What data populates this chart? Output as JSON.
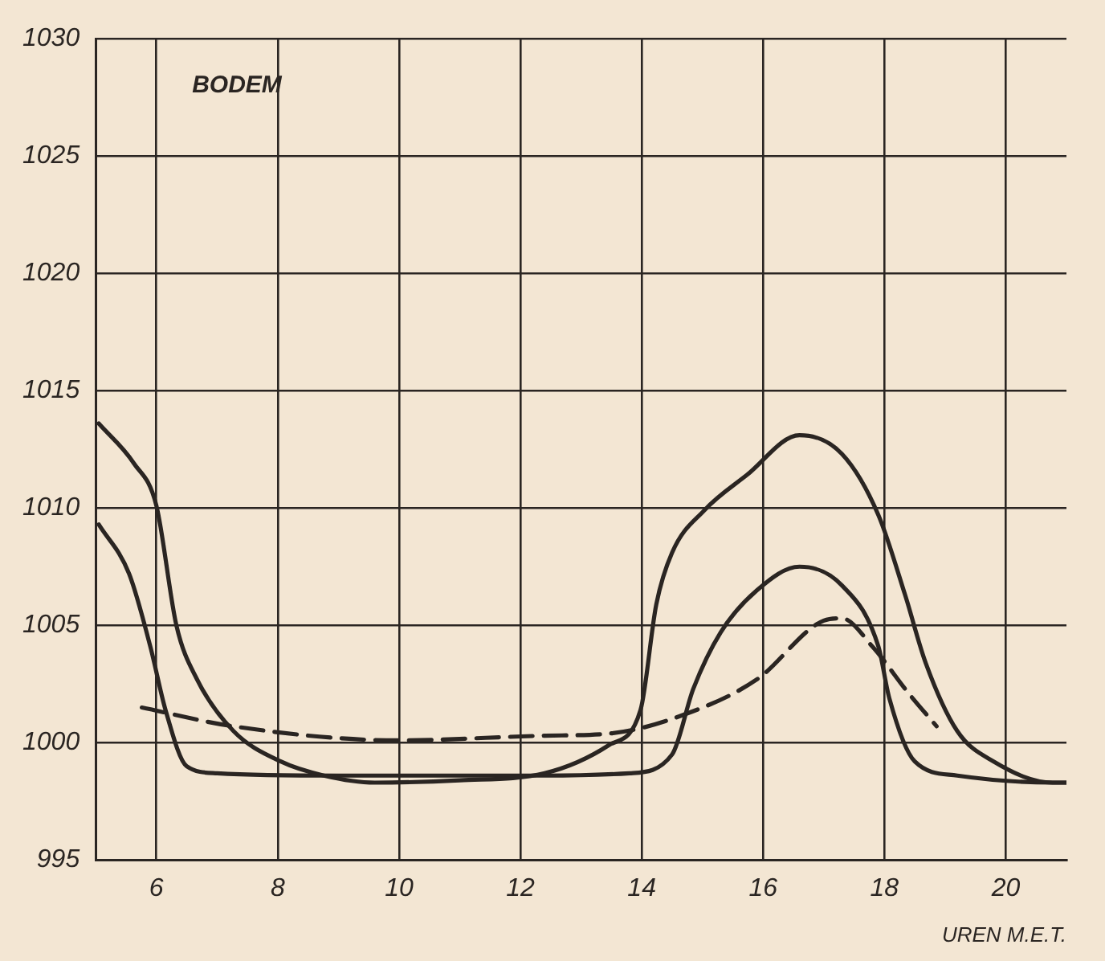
{
  "chart_data": {
    "type": "line",
    "xlabel": "UREN M.E.T.",
    "annotations": [
      "BODEM"
    ],
    "xlim": [
      5,
      21
    ],
    "ylim": [
      995,
      1030
    ],
    "xticks": [
      6,
      8,
      10,
      12,
      14,
      16,
      18,
      20
    ],
    "yticks": [
      995,
      1000,
      1005,
      1010,
      1015,
      1020,
      1025,
      1030
    ],
    "grid": true,
    "legend": false,
    "marker": "none",
    "series": [
      {
        "color": "#2a2522",
        "line_style": "solid",
        "x": [
          5.05,
          5.63,
          6,
          6.33,
          6.67,
          7.27,
          8.05,
          8.76,
          9.6,
          11,
          12.4,
          13.46,
          13.98,
          14.24,
          14.5,
          15.03,
          15.73,
          16.6,
          17.3,
          17.9,
          18.34,
          18.68,
          19.2,
          19.8,
          20.77,
          21
        ],
        "values": [
          1013.6,
          1011.9,
          1010.1,
          1005,
          1002.7,
          1000.5,
          999.2,
          998.6,
          998.3,
          998.4,
          998.7,
          999.9,
          1001.4,
          1005.9,
          1008.1,
          1009.9,
          1011.4,
          1013.1,
          1012.3,
          1009.7,
          1006.3,
          1003.4,
          1000.5,
          999.2,
          998.3,
          998.3
        ]
      },
      {
        "color": "#2a2522",
        "line_style": "solid",
        "x": [
          5.05,
          5.55,
          5.9,
          6.15,
          6.5,
          7,
          9,
          12.4,
          13.8,
          14.5,
          14.85,
          15.3,
          15.9,
          16.6,
          17.3,
          17.9,
          18.08,
          18.5,
          19.2,
          20.77,
          21
        ],
        "values": [
          1009.3,
          1007.2,
          1004.1,
          1001.4,
          999,
          998.7,
          998.6,
          998.6,
          998.7,
          999.5,
          1002.3,
          1004.7,
          1006.5,
          1007.5,
          1006.7,
          1004.1,
          1001.9,
          999.2,
          998.6,
          998.3,
          998.3
        ]
      },
      {
        "color": "#2a2522",
        "line_style": "dashed",
        "x": [
          5.76,
          7.27,
          9.98,
          12.4,
          13.5,
          14.7,
          15.9,
          17,
          17.3,
          17.8,
          18.4,
          18.86
        ],
        "values": [
          1001.5,
          1000.7,
          1000.1,
          1000.3,
          1000.4,
          1001.2,
          1002.7,
          1005.2,
          1005.3,
          1004.1,
          1002.1,
          1000.7
        ]
      }
    ]
  }
}
